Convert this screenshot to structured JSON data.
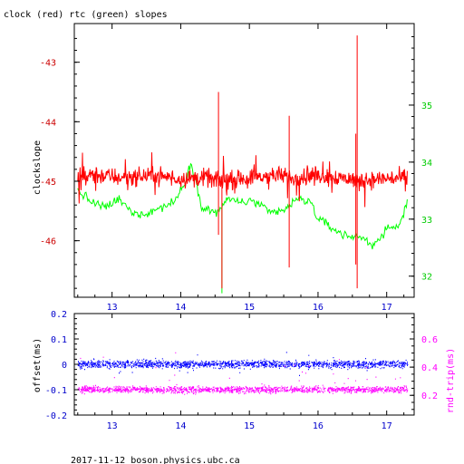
{
  "chart_data": [
    {
      "type": "line",
      "title": "clock (red) rtc (green) slopes",
      "ylabel": "clockslope",
      "xlabel": "",
      "xlim": [
        12.45,
        17.4
      ],
      "ylim": [
        -46.95,
        -42.35
      ],
      "y2lim": [
        31.63,
        36.43
      ],
      "x_ticks": [
        "13",
        "14",
        "15",
        "16",
        "17"
      ],
      "y_ticks": [
        "-43",
        "-44",
        "-45",
        "-46"
      ],
      "y2_ticks": [
        "35",
        "34",
        "33",
        "32"
      ],
      "colors": {
        "left_axis": "#cc0000",
        "right_axis": "#00cc00",
        "x_axis": "#0000cc"
      },
      "series": [
        {
          "axis": "left",
          "color": "#ff0000",
          "x": [
            12.5,
            12.8,
            13.2,
            13.6,
            14.0,
            14.4,
            14.6,
            15.0,
            15.4,
            15.6,
            16.0,
            16.4,
            16.6,
            17.0,
            17.3
          ],
          "y": [
            -44.95,
            -44.9,
            -44.95,
            -44.9,
            -44.95,
            -44.95,
            -45.0,
            -44.95,
            -44.9,
            -44.95,
            -44.9,
            -44.95,
            -45.0,
            -44.95,
            -44.95
          ]
        },
        {
          "axis": "right",
          "color": "#00ff00",
          "x": [
            12.5,
            12.7,
            12.9,
            13.1,
            13.3,
            13.5,
            13.7,
            13.9,
            14.05,
            14.15,
            14.3,
            14.5,
            14.7,
            14.9,
            15.1,
            15.3,
            15.5,
            15.7,
            15.9,
            16.0,
            16.2,
            16.4,
            16.6,
            16.8,
            17.0,
            17.2,
            17.3
          ],
          "y": [
            33.5,
            33.3,
            33.2,
            33.35,
            33.1,
            33.1,
            33.2,
            33.3,
            33.6,
            34.0,
            33.25,
            33.1,
            33.35,
            33.3,
            33.3,
            33.1,
            33.15,
            33.35,
            33.3,
            33.0,
            32.85,
            32.7,
            32.7,
            32.55,
            32.8,
            32.9,
            33.35
          ]
        }
      ]
    },
    {
      "type": "scatter",
      "ylabel": "offset(ms)",
      "y2label": "rnd-trip(ms)",
      "xlim": [
        12.45,
        17.4
      ],
      "ylim": [
        -0.2,
        0.2
      ],
      "y2lim": [
        0.06,
        0.78
      ],
      "x_ticks": [
        "13",
        "14",
        "15",
        "16",
        "17"
      ],
      "y_ticks": [
        "0.2",
        "0.1",
        "0",
        "-0.1",
        "-0.2"
      ],
      "y2_ticks": [
        "0.6",
        "0.4",
        "0.2"
      ],
      "colors": {
        "offset": "#0000ff",
        "round_trip": "#ff00ff"
      },
      "series": [
        {
          "axis": "left",
          "color": "#0000ff",
          "x": [
            12.5,
            13.5,
            14.5,
            15.5,
            16.5,
            17.3
          ],
          "y": [
            0.0,
            0.0,
            0.0,
            0.0,
            0.0,
            0.0
          ]
        },
        {
          "axis": "right",
          "color": "#ff00ff",
          "x": [
            12.5,
            13.5,
            14.5,
            15.5,
            16.5,
            17.3
          ],
          "y": [
            0.24,
            0.24,
            0.24,
            0.24,
            0.24,
            0.24
          ]
        }
      ]
    }
  ],
  "footer": "2017-11-12  boson.physics.ubc.ca"
}
